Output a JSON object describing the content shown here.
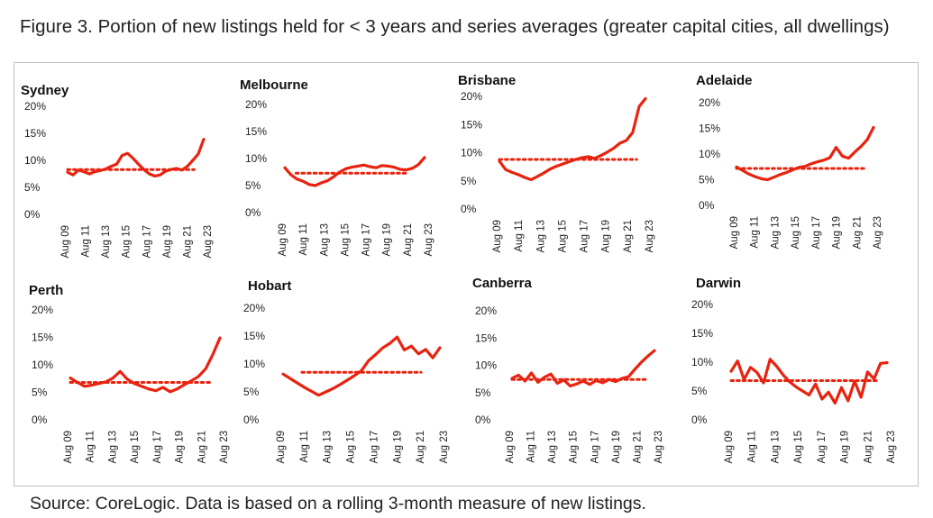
{
  "figure": {
    "title": "Figure 3. Portion of new listings held for < 3 years and series averages (greater capital cities, all dwellings)",
    "source": "Source: CoreLogic. Data is based on a rolling 3-month measure of new listings."
  },
  "colors": {
    "series": "#e8230f",
    "average": "#e8230f",
    "frame": "#bfbfbf"
  },
  "chart_data": [
    {
      "type": "line",
      "title": "Sydney",
      "x_ticks": [
        "Aug 09",
        "Aug 11",
        "Aug 13",
        "Aug 15",
        "Aug 17",
        "Aug 19",
        "Aug 21",
        "Aug 23"
      ],
      "y_ticks": [
        "0%",
        "5%",
        "10%",
        "15%",
        "20%"
      ],
      "ylim": [
        0,
        20
      ],
      "series": [
        {
          "values": [
            7.8,
            7.3,
            8.2,
            7.9,
            7.5,
            7.9,
            8.1,
            8.4,
            8.9,
            9.3,
            10.9,
            11.3,
            10.4,
            9.3,
            8.3,
            7.5,
            7.1,
            7.3,
            8.0,
            8.3,
            8.5,
            8.2,
            8.9,
            10.0,
            11.2,
            13.9
          ]
        }
      ],
      "average": 8.3,
      "average_span": [
        0.0,
        0.93
      ]
    },
    {
      "type": "line",
      "title": "Melbourne",
      "x_ticks": [
        "Aug 09",
        "Aug 11",
        "Aug 13",
        "Aug 15",
        "Aug 17",
        "Aug 19",
        "Aug 21",
        "Aug 23"
      ],
      "y_ticks": [
        "0%",
        "5%",
        "10%",
        "15%",
        "20%"
      ],
      "ylim": [
        0,
        20
      ],
      "series": [
        {
          "values": [
            8.3,
            7.0,
            6.2,
            5.8,
            5.2,
            5.0,
            5.5,
            5.9,
            6.6,
            7.5,
            8.1,
            8.4,
            8.6,
            8.8,
            8.5,
            8.3,
            8.7,
            8.6,
            8.4,
            8.0,
            7.9,
            8.2,
            8.9,
            10.2
          ]
        }
      ],
      "average": 7.3,
      "average_span": [
        0.08,
        0.88
      ]
    },
    {
      "type": "line",
      "title": "Brisbane",
      "x_ticks": [
        "Aug 09",
        "Aug 11",
        "Aug 13",
        "Aug 15",
        "Aug 17",
        "Aug 19",
        "Aug 21",
        "Aug 23"
      ],
      "y_ticks": [
        "0%",
        "5%",
        "10%",
        "15%",
        "20%"
      ],
      "ylim": [
        0,
        20
      ],
      "series": [
        {
          "values": [
            8.5,
            7.0,
            6.5,
            6.1,
            5.6,
            5.2,
            5.8,
            6.4,
            7.1,
            7.6,
            8.0,
            8.4,
            8.8,
            9.1,
            9.3,
            9.0,
            9.5,
            10.1,
            10.8,
            11.7,
            12.2,
            13.6,
            18.2,
            19.6
          ]
        }
      ],
      "average": 8.8,
      "average_span": [
        0.0,
        0.94
      ]
    },
    {
      "type": "line",
      "title": "Adelaide",
      "x_ticks": [
        "Aug 09",
        "Aug 11",
        "Aug 13",
        "Aug 15",
        "Aug 17",
        "Aug 19",
        "Aug 21",
        "Aug 23"
      ],
      "y_ticks": [
        "0%",
        "5%",
        "10%",
        "15%",
        "20%"
      ],
      "ylim": [
        0,
        20
      ],
      "series": [
        {
          "values": [
            7.5,
            6.8,
            6.1,
            5.6,
            5.2,
            5.0,
            5.5,
            6.0,
            6.4,
            6.9,
            7.4,
            7.6,
            8.1,
            8.5,
            8.8,
            9.3,
            11.3,
            9.6,
            9.2,
            10.4,
            11.5,
            12.8,
            15.2
          ]
        }
      ],
      "average": 7.2,
      "average_span": [
        0.0,
        0.95
      ]
    },
    {
      "type": "line",
      "title": "Perth",
      "x_ticks": [
        "Aug 09",
        "Aug 11",
        "Aug 13",
        "Aug 15",
        "Aug 17",
        "Aug 19",
        "Aug 21",
        "Aug 23"
      ],
      "y_ticks": [
        "0%",
        "5%",
        "10%",
        "15%",
        "20%"
      ],
      "ylim": [
        0,
        20
      ],
      "series": [
        {
          "values": [
            7.6,
            6.8,
            6.1,
            6.3,
            6.6,
            6.9,
            7.6,
            8.8,
            7.4,
            6.6,
            6.1,
            5.6,
            5.3,
            5.9,
            5.1,
            5.6,
            6.4,
            7.1,
            7.9,
            9.3,
            11.9,
            14.9
          ]
        }
      ],
      "average": 6.8,
      "average_span": [
        0.0,
        0.95
      ]
    },
    {
      "type": "line",
      "title": "Hobart",
      "x_ticks": [
        "Aug 09",
        "Aug 11",
        "Aug 13",
        "Aug 15",
        "Aug 17",
        "Aug 19",
        "Aug 21",
        "Aug 23"
      ],
      "y_ticks": [
        "0%",
        "5%",
        "10%",
        "15%",
        "20%"
      ],
      "ylim": [
        0,
        20
      ],
      "series": [
        {
          "values": [
            8.2,
            7.4,
            6.6,
            5.8,
            5.1,
            4.4,
            5.0,
            5.6,
            6.3,
            7.1,
            7.9,
            8.8,
            10.6,
            11.7,
            12.9,
            13.7,
            14.8,
            12.5,
            13.2,
            11.8,
            12.6,
            11.1,
            12.9
          ]
        }
      ],
      "average": 8.5,
      "average_span": [
        0.12,
        0.88
      ]
    },
    {
      "type": "line",
      "title": "Canberra",
      "x_ticks": [
        "Aug 09",
        "Aug 11",
        "Aug 13",
        "Aug 15",
        "Aug 17",
        "Aug 19",
        "Aug 21",
        "Aug 23"
      ],
      "y_ticks": [
        "0%",
        "5%",
        "10%",
        "15%",
        "20%"
      ],
      "ylim": [
        0,
        20
      ],
      "series": [
        {
          "values": [
            7.6,
            8.2,
            7.1,
            8.6,
            6.9,
            7.8,
            8.4,
            6.7,
            7.3,
            6.2,
            6.6,
            7.1,
            6.5,
            7.2,
            6.8,
            7.4,
            7.0,
            7.6,
            7.9,
            9.3,
            10.6,
            11.7,
            12.7
          ]
        }
      ],
      "average": 7.4,
      "average_span": [
        0.0,
        0.95
      ]
    },
    {
      "type": "line",
      "title": "Darwin",
      "x_ticks": [
        "Aug 09",
        "Aug 11",
        "Aug 13",
        "Aug 15",
        "Aug 17",
        "Aug 19",
        "Aug 21",
        "Aug 23"
      ],
      "y_ticks": [
        "0%",
        "5%",
        "10%",
        "15%",
        "20%"
      ],
      "ylim": [
        0,
        20
      ],
      "series": [
        {
          "values": [
            8.4,
            10.2,
            7.0,
            9.1,
            8.2,
            6.4,
            10.5,
            9.3,
            7.8,
            6.6,
            5.7,
            5.0,
            4.3,
            6.2,
            3.6,
            4.8,
            2.9,
            5.6,
            3.3,
            6.7,
            3.9,
            8.3,
            7.1,
            9.8,
            9.9
          ]
        }
      ],
      "average": 6.8,
      "average_span": [
        0.0,
        0.95
      ]
    }
  ]
}
